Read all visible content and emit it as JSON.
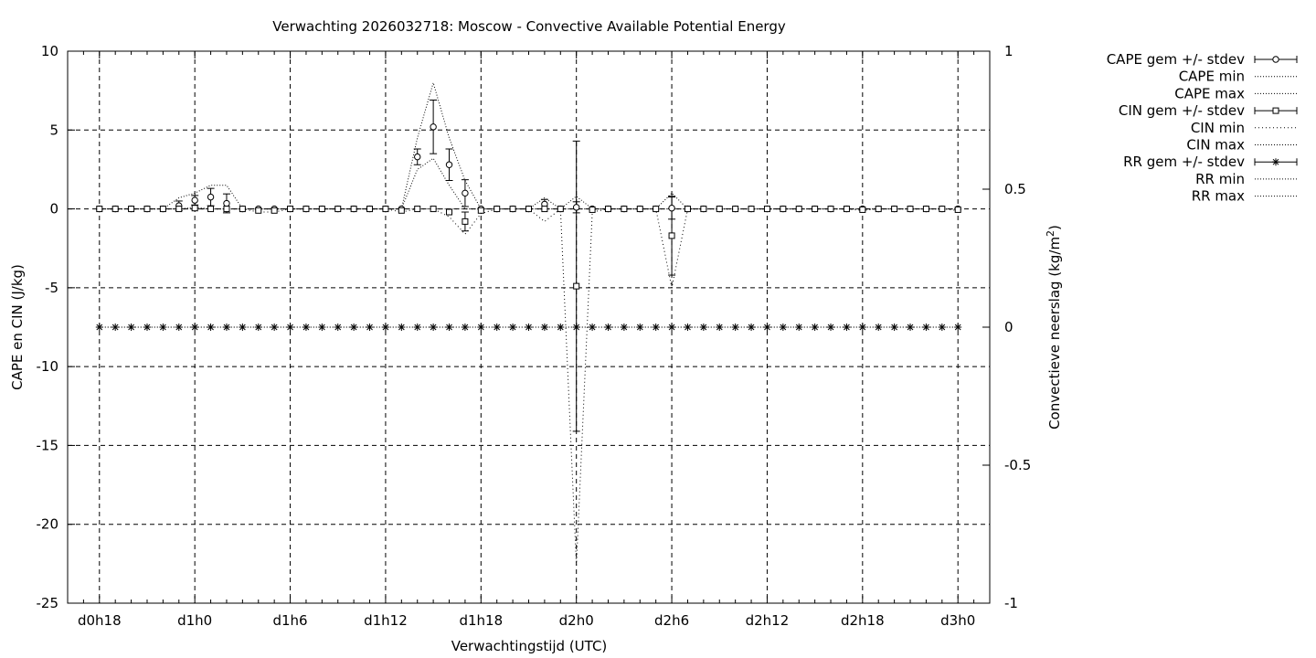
{
  "chart_data": {
    "type": "line",
    "title": "Verwachting 2026032718: Moscow - Convective Available Potential Energy",
    "xlabel": "Verwachtingstijd (UTC)",
    "ylabel": "CAPE en CIN (J/kg)",
    "y2label_main": "Convectieve neerslag (kg/m",
    "y2label_sup": "2",
    "y2label_end": ")",
    "x_unit": "hours since 2026032718",
    "xlim": [
      -2,
      56
    ],
    "ylim": [
      -25,
      10
    ],
    "y2lim": [
      -1,
      1
    ],
    "xticks": [
      {
        "x": 0,
        "label": "d0h18"
      },
      {
        "x": 6,
        "label": "d1h0"
      },
      {
        "x": 12,
        "label": "d1h6"
      },
      {
        "x": 18,
        "label": "d1h12"
      },
      {
        "x": 24,
        "label": "d1h18"
      },
      {
        "x": 30,
        "label": "d2h0"
      },
      {
        "x": 36,
        "label": "d2h6"
      },
      {
        "x": 42,
        "label": "d2h12"
      },
      {
        "x": 48,
        "label": "d2h18"
      },
      {
        "x": 54,
        "label": "d3h0"
      }
    ],
    "yticks": [
      {
        "v": 10,
        "label": "10"
      },
      {
        "v": 5,
        "label": "5"
      },
      {
        "v": 0,
        "label": "0"
      },
      {
        "v": -5,
        "label": "-5"
      },
      {
        "v": -10,
        "label": "-10"
      },
      {
        "v": -15,
        "label": "-15"
      },
      {
        "v": -20,
        "label": "-20"
      },
      {
        "v": -25,
        "label": "-25"
      }
    ],
    "y2ticks": [
      {
        "v": 1,
        "label": "1"
      },
      {
        "v": 0.5,
        "label": "0.5"
      },
      {
        "v": 0,
        "label": "0"
      },
      {
        "v": -0.5,
        "label": "-0.5"
      },
      {
        "v": -1,
        "label": "-1"
      }
    ],
    "grid": true,
    "legend_position": "outside-right",
    "x": [
      0,
      1,
      2,
      3,
      4,
      5,
      6,
      7,
      8,
      9,
      10,
      11,
      12,
      13,
      14,
      15,
      16,
      17,
      18,
      19,
      20,
      21,
      22,
      23,
      24,
      25,
      26,
      27,
      28,
      29,
      30,
      31,
      32,
      33,
      34,
      35,
      36,
      37,
      38,
      39,
      40,
      41,
      42,
      43,
      44,
      45,
      46,
      47,
      48,
      49,
      50,
      51,
      52,
      53,
      54
    ],
    "series": [
      {
        "name": "CAPE gem +/- stdev",
        "marker": "circle",
        "axis": "y",
        "values": [
          0,
          0,
          0,
          0,
          0,
          0.2,
          0.55,
          0.75,
          0.35,
          0,
          0,
          0,
          0,
          0,
          0,
          0,
          0,
          0,
          0,
          0,
          3.3,
          5.2,
          2.8,
          1.0,
          0,
          0,
          0,
          0,
          0.3,
          0,
          0.1,
          0,
          0,
          0,
          0,
          0,
          0.05,
          0,
          0,
          0,
          0,
          0,
          0,
          0,
          0,
          0,
          0,
          0,
          0,
          0,
          0,
          0,
          0,
          0,
          0
        ],
        "stdev": [
          0,
          0,
          0,
          0,
          0,
          0.3,
          0.3,
          0.55,
          0.6,
          0,
          0,
          0,
          0,
          0,
          0,
          0,
          0,
          0,
          0,
          0,
          0.5,
          1.7,
          1.0,
          0.85,
          0,
          0,
          0,
          0,
          0.3,
          0,
          0.35,
          0,
          0,
          0,
          0,
          0,
          0.7,
          0,
          0,
          0,
          0,
          0,
          0,
          0,
          0,
          0,
          0,
          0,
          0,
          0,
          0,
          0,
          0,
          0,
          0
        ]
      },
      {
        "name": "CAPE min",
        "axis": "y",
        "values": [
          0,
          0,
          0,
          0,
          0,
          0,
          0,
          0,
          0,
          0,
          0,
          0,
          0,
          0,
          0,
          0,
          0,
          0,
          0,
          0,
          2.5,
          3.2,
          1.5,
          0,
          0,
          0,
          0,
          0,
          0,
          0,
          0,
          0,
          0,
          0,
          0,
          0,
          0,
          0,
          0,
          0,
          0,
          0,
          0,
          0,
          0,
          0,
          0,
          0,
          0,
          0,
          0,
          0,
          0,
          0,
          0
        ]
      },
      {
        "name": "CAPE max",
        "axis": "y",
        "values": [
          0,
          0,
          0,
          0,
          0,
          0.7,
          1.0,
          1.5,
          1.5,
          0,
          0,
          0,
          0,
          0,
          0,
          0,
          0,
          0,
          0,
          0,
          4.5,
          8.0,
          4.5,
          1.8,
          0,
          0,
          0,
          0,
          0.7,
          0,
          0.8,
          0,
          0,
          0,
          0,
          0,
          1.0,
          0,
          0,
          0,
          0,
          0,
          0,
          0,
          0,
          0,
          0,
          0,
          0,
          0,
          0,
          0,
          0,
          0,
          0
        ]
      },
      {
        "name": "CIN gem +/- stdev",
        "marker": "square",
        "axis": "y",
        "values": [
          0,
          0,
          0,
          0,
          0,
          0,
          0.05,
          0,
          0,
          0,
          -0.1,
          -0.1,
          0,
          0,
          0,
          0,
          0,
          0,
          0,
          -0.1,
          0,
          0,
          -0.2,
          -0.8,
          -0.1,
          0,
          0,
          0,
          0,
          0,
          -4.9,
          -0.05,
          0,
          0,
          0,
          0,
          -1.7,
          0,
          0,
          0,
          0,
          0,
          0,
          0,
          0,
          0,
          0,
          0,
          -0.05,
          0,
          0,
          0,
          0,
          0,
          -0.05
        ],
        "stdev": [
          0,
          0,
          0,
          0,
          0,
          0,
          0,
          0,
          0,
          0,
          0,
          0,
          0,
          0,
          0,
          0,
          0,
          0,
          0,
          0,
          0,
          0,
          0,
          0.6,
          0,
          0,
          0,
          0,
          0,
          0,
          9.2,
          0,
          0,
          0,
          0,
          0,
          2.5,
          0,
          0,
          0,
          0,
          0,
          0,
          0,
          0,
          0,
          0,
          0,
          0,
          0,
          0,
          0,
          0,
          0,
          0
        ]
      },
      {
        "name": "CIN min",
        "axis": "y",
        "values": [
          0,
          0,
          0,
          0,
          0,
          0,
          0,
          0,
          0,
          0,
          -0.2,
          -0.2,
          0,
          0,
          0,
          0,
          0,
          0,
          0,
          -0.2,
          0,
          0,
          -0.5,
          -1.6,
          -0.3,
          0,
          0,
          0,
          -0.8,
          0,
          -22.6,
          -0.2,
          0,
          0,
          0,
          0,
          -5.0,
          0,
          0,
          0,
          0,
          0,
          0,
          0,
          0,
          0,
          0,
          0,
          -0.1,
          0,
          0,
          0,
          0,
          0,
          -0.1
        ]
      },
      {
        "name": "CIN max",
        "axis": "y",
        "values": [
          0,
          0,
          0,
          0,
          0,
          0,
          0.1,
          0,
          0,
          0,
          0,
          0,
          0,
          0,
          0,
          0,
          0,
          0,
          0,
          0,
          0,
          0,
          0,
          0,
          0,
          0,
          0,
          0,
          0,
          0,
          0,
          0,
          0,
          0,
          0,
          0,
          0,
          0,
          0,
          0,
          0,
          0,
          0,
          0,
          0,
          0,
          0,
          0,
          0,
          0,
          0,
          0,
          0,
          0,
          0
        ]
      },
      {
        "name": "RR gem +/- stdev",
        "marker": "star",
        "axis": "y2",
        "values": [
          0,
          0,
          0,
          0,
          0,
          0,
          0,
          0,
          0,
          0,
          0,
          0,
          0,
          0,
          0,
          0,
          0,
          0,
          0,
          0,
          0,
          0,
          0,
          0,
          0,
          0,
          0,
          0,
          0,
          0,
          0,
          0,
          0,
          0,
          0,
          0,
          0,
          0,
          0,
          0,
          0,
          0,
          0,
          0,
          0,
          0,
          0,
          0,
          0,
          0,
          0,
          0,
          0,
          0,
          0
        ]
      },
      {
        "name": "RR min",
        "axis": "y2",
        "values": [
          0,
          0,
          0,
          0,
          0,
          0,
          0,
          0,
          0,
          0,
          0,
          0,
          0,
          0,
          0,
          0,
          0,
          0,
          0,
          0,
          0,
          0,
          0,
          0,
          0,
          0,
          0,
          0,
          0,
          0,
          0,
          0,
          0,
          0,
          0,
          0,
          0,
          0,
          0,
          0,
          0,
          0,
          0,
          0,
          0,
          0,
          0,
          0,
          0,
          0,
          0,
          0,
          0,
          0,
          0
        ]
      },
      {
        "name": "RR max",
        "axis": "y2",
        "values": [
          0,
          0,
          0,
          0,
          0,
          0,
          0,
          0,
          0,
          0,
          0,
          0,
          0,
          0,
          0,
          0,
          0,
          0,
          0,
          0,
          0,
          0,
          0,
          0,
          0,
          0,
          0,
          0,
          0,
          0,
          0,
          0,
          0,
          0,
          0,
          0,
          0,
          0,
          0,
          0,
          0,
          0,
          0,
          0,
          0,
          0,
          0,
          0,
          0,
          0,
          0,
          0,
          0,
          0,
          0
        ]
      }
    ]
  }
}
